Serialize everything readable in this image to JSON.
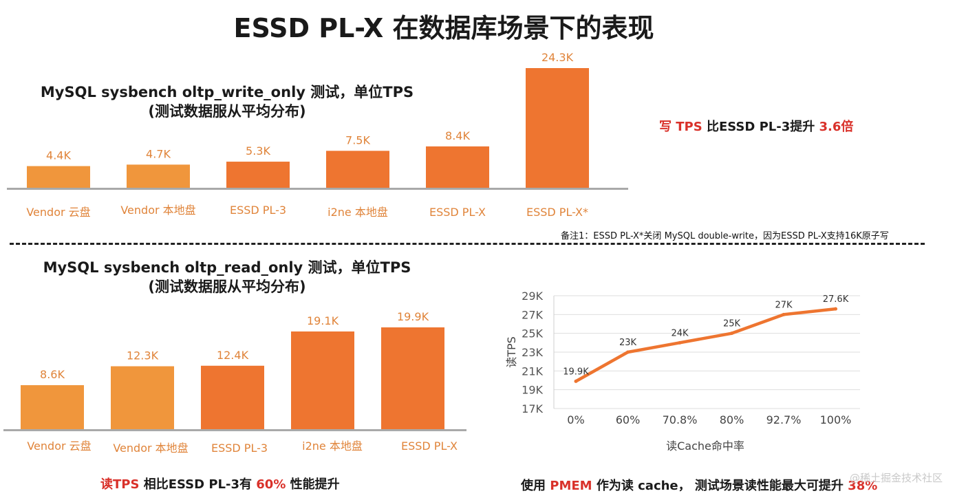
{
  "page": {
    "title": "ESSD PL-X 在数据库场景下的表现",
    "watermark": "@稀土掘金技术社区"
  },
  "write_section": {
    "title_line1": "MySQL sysbench oltp_write_only 测试，单位TPS",
    "title_line2": "(测试数据服从平均分布)",
    "highlight": {
      "prefix": "写 TPS",
      "middle": " 比ESSD PL-3提升 ",
      "value": "3.6倍"
    },
    "note": "备注1：ESSD PL-X*关闭 MySQL double-write，因为ESSD PL-X支持16K原子写"
  },
  "read_section": {
    "title_line1": "MySQL sysbench oltp_read_only 测试，单位TPS",
    "title_line2": "(测试数据服从平均分布)",
    "highlight": {
      "prefix": "读TPS",
      "middle": " 相比ESSD PL-3有 ",
      "value": "60%",
      "suffix": " 性能提升"
    }
  },
  "pmem_section": {
    "highlight": {
      "prefix": "使用 ",
      "accent": "PMEM",
      "middle": " 作为读 cache，  测试场景读性能最大可提升 ",
      "value": "38%"
    }
  },
  "colors": {
    "bar_light": "#f0963c",
    "bar_dark": "#ee7530",
    "label": "#e0843a",
    "red": "#d9312a",
    "line": "#ee7530",
    "axis": "#a9a9a9",
    "grid": "#dedede"
  },
  "chart_data": [
    {
      "id": "write",
      "type": "bar",
      "title": "MySQL sysbench oltp_write_only 测试，单位TPS",
      "categories": [
        "Vendor 云盘",
        "Vendor 本地盘",
        "ESSD PL-3",
        "i2ne 本地盘",
        "ESSD PL-X",
        "ESSD PL-X*"
      ],
      "values": [
        4.4,
        4.7,
        5.3,
        7.5,
        8.4,
        24.3
      ],
      "value_labels": [
        "4.4K",
        "4.7K",
        "5.3K",
        "7.5K",
        "8.4K",
        "24.3K"
      ],
      "unit": "K TPS",
      "ylim": [
        0,
        24.3
      ]
    },
    {
      "id": "read",
      "type": "bar",
      "title": "MySQL sysbench oltp_read_only 测试，单位TPS",
      "categories": [
        "Vendor 云盘",
        "Vendor 本地盘",
        "ESSD PL-3",
        "i2ne 本地盘",
        "ESSD PL-X"
      ],
      "values": [
        8.6,
        12.3,
        12.4,
        19.1,
        19.9
      ],
      "value_labels": [
        "8.6K",
        "12.3K",
        "12.4K",
        "19.1K",
        "19.9K"
      ],
      "unit": "K TPS",
      "ylim": [
        0,
        19.9
      ]
    },
    {
      "id": "pmem",
      "type": "line",
      "x": [
        "0%",
        "60%",
        "70.8%",
        "80%",
        "92.7%",
        "100%"
      ],
      "values": [
        19.9,
        23,
        24,
        25,
        27,
        27.6
      ],
      "value_labels": [
        "19.9K",
        "23K",
        "24K",
        "25K",
        "27K",
        "27.6K"
      ],
      "ylabel": "读TPS",
      "xlabel": "读Cache命中率",
      "yticks": [
        17,
        19,
        21,
        23,
        25,
        27,
        29
      ],
      "ytick_labels": [
        "17K",
        "19K",
        "21K",
        "23K",
        "25K",
        "27K",
        "29K"
      ],
      "ylim": [
        17,
        29
      ],
      "grid": true
    }
  ]
}
